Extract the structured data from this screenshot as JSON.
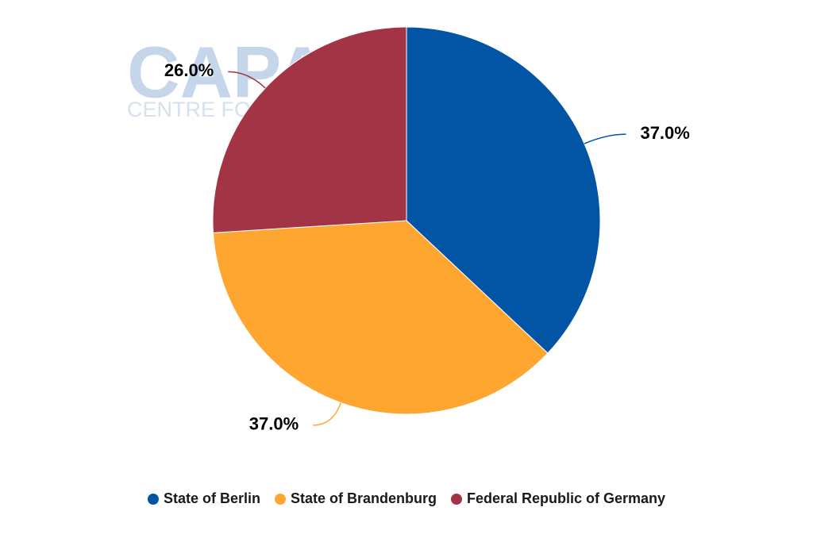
{
  "chart_data": {
    "type": "pie",
    "watermark": {
      "logo": "CAPA",
      "tagline": "CENTRE FOR AVIATION"
    },
    "categories": [
      "State of Berlin",
      "State of Brandenburg",
      "Federal Republic of Germany"
    ],
    "values": [
      37,
      37,
      26
    ],
    "value_labels": [
      "37.0%",
      "37.0%",
      "26.0%"
    ],
    "colors": [
      "#0254a5",
      "#ffa630",
      "#a33446"
    ],
    "legend": "bottom"
  }
}
